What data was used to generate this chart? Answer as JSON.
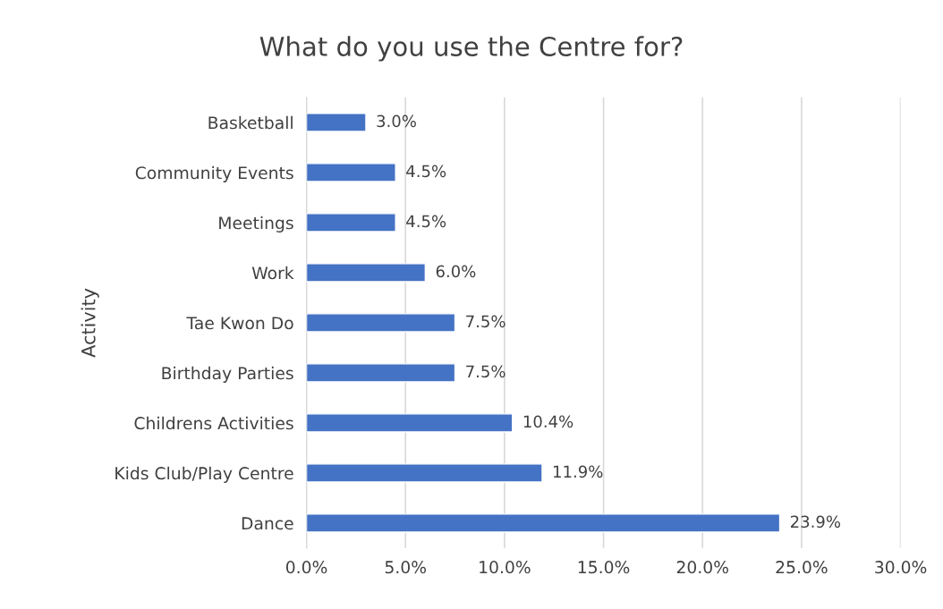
{
  "chart_data": {
    "type": "bar",
    "orientation": "horizontal",
    "title": "What do you use the Centre for?",
    "ylabel": "Activity",
    "categories": [
      "Basketball",
      "Community Events",
      "Meetings",
      "Work",
      "Tae Kwon Do",
      "Birthday Parties",
      "Childrens Activities",
      "Kids Club/Play Centre",
      "Dance"
    ],
    "values": [
      3.0,
      4.5,
      4.5,
      6.0,
      7.5,
      7.5,
      10.4,
      11.9,
      23.9
    ],
    "value_labels": [
      "3.0%",
      "4.5%",
      "4.5%",
      "6.0%",
      "7.5%",
      "7.5%",
      "10.4%",
      "11.9%",
      "23.9%"
    ],
    "color": "#4472c4",
    "xlim": [
      0,
      30
    ],
    "xticks": [
      {
        "value": 0,
        "label": "0.0%"
      },
      {
        "value": 5,
        "label": "5.0%"
      },
      {
        "value": 10,
        "label": "10.0%"
      },
      {
        "value": 15,
        "label": "15.0%"
      },
      {
        "value": 20,
        "label": "20.0%"
      },
      {
        "value": 25,
        "label": "25.0%"
      },
      {
        "value": 30,
        "label": "30.0%"
      }
    ],
    "grid": "x"
  }
}
